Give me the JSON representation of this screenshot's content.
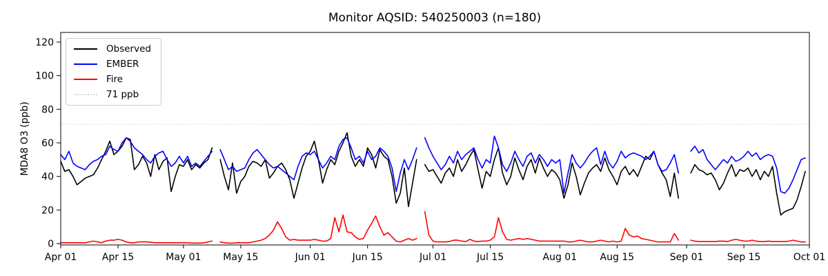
{
  "chart_data": {
    "type": "line",
    "title": "Monitor AQSID: 540250003 (n=180)",
    "xlabel": "",
    "ylabel": "MDA8 O3 (ppb)",
    "x_axis": {
      "start_date": "Apr 01",
      "end_date": "Oct 01",
      "unit": "day",
      "tick_labels": [
        "Apr 01",
        "Apr 15",
        "May 01",
        "May 15",
        "Jun 01",
        "Jun 15",
        "Jul 01",
        "Jul 15",
        "Aug 01",
        "Aug 15",
        "Sep 01",
        "Sep 15",
        "Oct 01"
      ],
      "tick_days": [
        0,
        14,
        30,
        44,
        61,
        75,
        91,
        105,
        122,
        136,
        153,
        167,
        183
      ],
      "range_days": [
        0,
        183
      ]
    },
    "y_axis": {
      "ticks": [
        0,
        20,
        40,
        60,
        80,
        100,
        120
      ],
      "range": [
        0,
        125.7
      ],
      "grid": false
    },
    "threshold": {
      "value": 71,
      "label": "71 ppb",
      "color": "#d3d3d3",
      "style": "dotted"
    },
    "legend": {
      "location": "upper left",
      "items": [
        {
          "label": "Observed",
          "color": "#000000",
          "line_style": "solid"
        },
        {
          "label": "EMBER",
          "color": "#0000ff",
          "line_style": "solid"
        },
        {
          "label": "Fire",
          "color": "#ff0000",
          "line_style": "solid"
        },
        {
          "label": "71 ppb",
          "color": "#d3d3d3",
          "line_style": "dotted"
        }
      ]
    },
    "note": "daily MDA8 O3 values starting Apr 01; null = missing day (data gaps around May 09, Jun 27, Aug 31-Sep 01)",
    "series": [
      {
        "name": "Observed",
        "color": "#000000",
        "values": [
          49,
          43,
          44,
          40,
          35,
          37,
          39,
          40,
          41,
          45,
          50,
          55,
          61,
          53,
          55,
          58,
          63,
          62,
          44,
          47,
          52,
          48,
          40,
          53,
          44,
          49,
          51,
          31,
          40,
          47,
          46,
          50,
          44,
          47,
          45,
          48,
          50,
          57,
          null,
          50,
          40,
          32,
          48,
          30,
          37,
          40,
          46,
          49,
          48,
          46,
          50,
          39,
          42,
          46,
          48,
          44,
          38,
          27,
          36,
          45,
          52,
          55,
          61,
          50,
          36,
          44,
          50,
          47,
          55,
          60,
          66,
          52,
          46,
          50,
          46,
          57,
          53,
          45,
          56,
          52,
          50,
          40,
          24,
          30,
          45,
          22,
          36,
          50,
          null,
          47,
          43,
          44,
          40,
          36,
          42,
          45,
          40,
          50,
          43,
          47,
          52,
          56,
          44,
          33,
          43,
          40,
          50,
          57,
          42,
          35,
          40,
          51,
          44,
          38,
          46,
          50,
          42,
          51,
          45,
          40,
          44,
          42,
          38,
          27,
          35,
          48,
          40,
          29,
          36,
          42,
          45,
          47,
          43,
          51,
          44,
          40,
          35,
          43,
          46,
          41,
          44,
          40,
          46,
          52,
          50,
          55,
          47,
          42,
          38,
          28,
          42,
          27,
          null,
          null,
          42,
          47,
          44,
          43,
          41,
          42,
          38,
          32,
          36,
          42,
          47,
          40,
          44,
          43,
          45,
          40,
          44,
          38,
          43,
          40,
          46,
          30,
          17,
          19,
          20,
          21,
          26,
          34,
          43
        ]
      },
      {
        "name": "EMBER",
        "color": "#0000ff",
        "values": [
          53,
          50,
          55,
          48,
          46,
          45,
          44,
          47,
          49,
          50,
          52,
          53,
          58,
          56,
          55,
          60,
          63,
          61,
          57,
          55,
          53,
          50,
          48,
          52,
          54,
          55,
          50,
          46,
          48,
          52,
          48,
          52,
          46,
          48,
          46,
          49,
          52,
          55,
          null,
          56,
          50,
          44,
          46,
          43,
          44,
          45,
          50,
          54,
          56,
          53,
          50,
          47,
          45,
          46,
          44,
          42,
          40,
          38,
          46,
          52,
          54,
          53,
          55,
          50,
          45,
          48,
          52,
          50,
          58,
          62,
          63,
          57,
          50,
          52,
          48,
          55,
          50,
          52,
          57,
          55,
          52,
          45,
          31,
          42,
          50,
          44,
          50,
          57,
          null,
          63,
          57,
          52,
          48,
          44,
          47,
          52,
          48,
          55,
          50,
          53,
          55,
          57,
          50,
          45,
          50,
          48,
          64,
          57,
          47,
          43,
          48,
          55,
          50,
          46,
          52,
          54,
          48,
          53,
          50,
          46,
          50,
          48,
          50,
          30,
          42,
          53,
          48,
          45,
          48,
          52,
          55,
          57,
          47,
          55,
          48,
          45,
          49,
          55,
          51,
          53,
          54,
          53,
          52,
          50,
          52,
          55,
          47,
          43,
          44,
          48,
          53,
          42,
          null,
          null,
          55,
          58,
          54,
          56,
          50,
          47,
          44,
          47,
          50,
          48,
          52,
          49,
          50,
          52,
          55,
          52,
          54,
          50,
          52,
          53,
          52,
          45,
          31,
          30,
          33,
          38,
          44,
          50,
          51
        ]
      },
      {
        "name": "Fire",
        "color": "#ff0000",
        "values": [
          0.5,
          0.5,
          0.5,
          0.5,
          0.5,
          0.5,
          0.5,
          1,
          1.5,
          1,
          0.5,
          1.5,
          2,
          2,
          2.5,
          2,
          1,
          0.5,
          0.5,
          1,
          1,
          1,
          0.8,
          0.5,
          0.5,
          0.5,
          0.5,
          0.5,
          0.5,
          0.5,
          0.5,
          0.5,
          0.3,
          0.3,
          0.3,
          0.5,
          1,
          1.5,
          null,
          1,
          0.5,
          0.3,
          0.3,
          0.5,
          0.5,
          0.5,
          0.5,
          1,
          1.5,
          2,
          3,
          5,
          8,
          13,
          9,
          4,
          2,
          2.5,
          2,
          2,
          2,
          2,
          2.5,
          2,
          1.5,
          1.5,
          3,
          15.5,
          7,
          17,
          7,
          6.5,
          4,
          2.5,
          3,
          8,
          12,
          16.5,
          10,
          5,
          6.5,
          4,
          1.5,
          1,
          2,
          3,
          2,
          3,
          null,
          19,
          5,
          1.5,
          1,
          1,
          1,
          1.2,
          2,
          2,
          1.5,
          1.2,
          2.5,
          1.5,
          1.2,
          1.5,
          1.5,
          2,
          4,
          15.5,
          7,
          2.5,
          2,
          2.5,
          3,
          2.5,
          3,
          2.5,
          2,
          1.5,
          1.5,
          1.5,
          1.5,
          1.5,
          1.5,
          1.5,
          1,
          1,
          1.5,
          2,
          1.5,
          1,
          1,
          1.5,
          2,
          1.5,
          1,
          1.5,
          1,
          1.5,
          9,
          5,
          4,
          4.5,
          3,
          2.5,
          2,
          1.5,
          1,
          1,
          1,
          1,
          6,
          2,
          null,
          null,
          2,
          1.5,
          1.2,
          1.2,
          1.2,
          1.2,
          1.2,
          1.5,
          1.5,
          1.2,
          2,
          2.5,
          2,
          1.5,
          1.5,
          2,
          1.5,
          1.2,
          1.2,
          1.5,
          1.2,
          1.2,
          1.2,
          1.2,
          1.5,
          2,
          1.5,
          1,
          1
        ]
      }
    ]
  }
}
